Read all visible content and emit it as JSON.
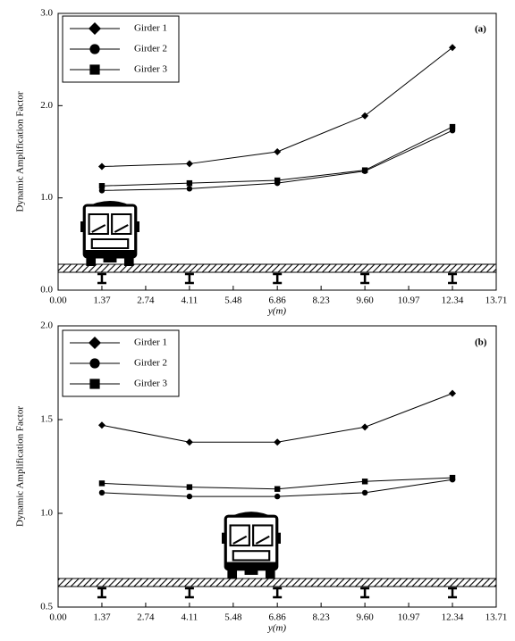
{
  "chart_data": [
    {
      "type": "line",
      "annotation": "(a)",
      "xlabel": "y(m)",
      "ylabel": "Dynamic Amplification Factor",
      "x": [
        1.37,
        4.11,
        6.86,
        9.6,
        12.34
      ],
      "series": [
        {
          "name": "Girder 1",
          "color": "#000000",
          "marker": "diamond",
          "values": [
            1.34,
            1.37,
            1.5,
            1.89,
            2.63
          ]
        },
        {
          "name": "Girder 2",
          "color": "#000000",
          "marker": "circle",
          "values": [
            1.08,
            1.1,
            1.16,
            1.29,
            1.73
          ]
        },
        {
          "name": "Girder 3",
          "color": "#000000",
          "marker": "square",
          "values": [
            1.13,
            1.16,
            1.19,
            1.3,
            1.77
          ]
        }
      ],
      "xlim": [
        0,
        13.71
      ],
      "xticks": [
        {
          "value": 0,
          "label": "0.00"
        },
        1.37,
        2.74,
        4.11,
        5.48,
        6.86,
        8.23,
        {
          "value": 9.6,
          "label": "9.60"
        },
        10.97,
        12.34,
        13.71
      ],
      "ylim": [
        0,
        3
      ],
      "yticks": [
        {
          "value": 0,
          "label": "0.0"
        },
        {
          "value": 1,
          "label": "1.0"
        },
        {
          "value": 2,
          "label": "2.0"
        },
        {
          "value": 3,
          "label": "3.0"
        }
      ],
      "legend": "upper left"
    },
    {
      "type": "line",
      "annotation": "(b)",
      "xlabel": "y(m)",
      "ylabel": "Dynamic Amplification Factor",
      "x": [
        1.37,
        4.11,
        6.86,
        9.6,
        12.34
      ],
      "series": [
        {
          "name": "Girder 1",
          "color": "#000000",
          "marker": "diamond",
          "values": [
            1.47,
            1.38,
            1.38,
            1.46,
            1.64
          ]
        },
        {
          "name": "Girder 2",
          "color": "#000000",
          "marker": "circle",
          "values": [
            1.11,
            1.09,
            1.09,
            1.11,
            1.18
          ]
        },
        {
          "name": "Girder 3",
          "color": "#000000",
          "marker": "square",
          "values": [
            1.16,
            1.14,
            1.13,
            1.17,
            1.19
          ]
        }
      ],
      "xlim": [
        0,
        13.71
      ],
      "xticks": [
        {
          "value": 0,
          "label": "0.00"
        },
        1.37,
        2.74,
        4.11,
        5.48,
        6.86,
        8.23,
        {
          "value": 9.6,
          "label": "9.60"
        },
        10.97,
        12.34,
        13.71
      ],
      "ylim": [
        0.5,
        2
      ],
      "yticks": [
        0.5,
        {
          "value": 1,
          "label": "1.0"
        },
        1.5,
        {
          "value": 2,
          "label": "2.0"
        }
      ],
      "legend": "upper left"
    }
  ]
}
